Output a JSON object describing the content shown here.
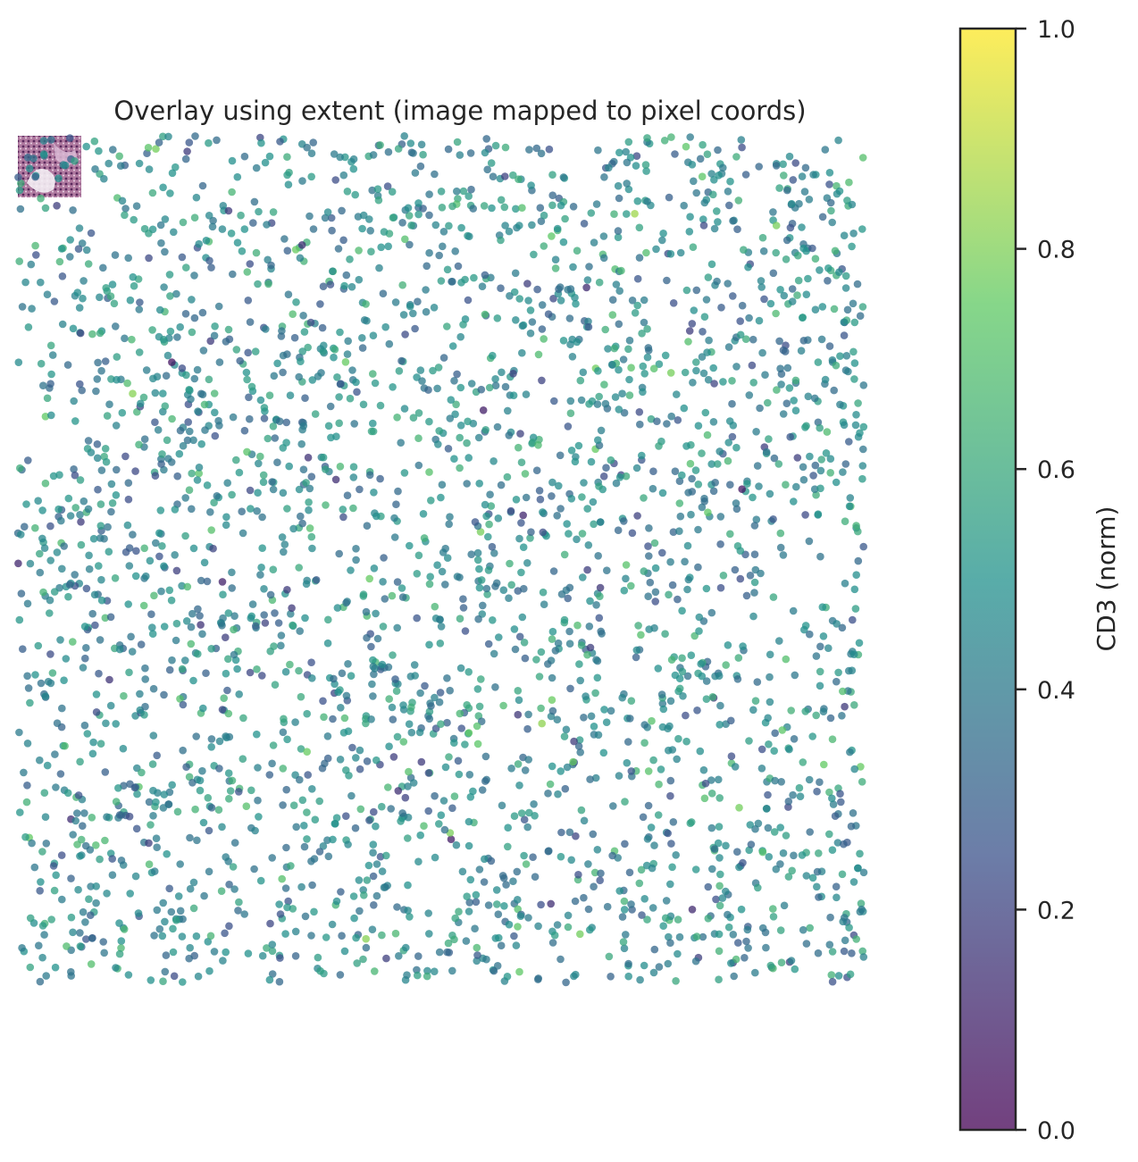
{
  "chart_data": {
    "type": "scatter",
    "title": "Overlay using extent (image mapped to pixel coords)",
    "xlabel": "",
    "ylabel": "",
    "axes_visible": false,
    "grid": false,
    "xlim": [
      0,
      1000
    ],
    "ylim": [
      1000,
      0
    ],
    "point_count": 3000,
    "color_field": "CD3 (norm)",
    "colormap": "viridis",
    "point_alpha": 0.75,
    "colorbar": {
      "label": "CD3 (norm)",
      "range": [
        0,
        1
      ],
      "ticks": [
        0.0,
        0.2,
        0.4,
        0.6,
        0.8,
        1.0
      ],
      "tick_labels": [
        "0.0",
        "0.2",
        "0.4",
        "0.6",
        "0.8",
        "1.0"
      ],
      "placement": "right"
    },
    "image_overlay": {
      "description": "H&E tissue thumbnail",
      "corner": "top-left",
      "extent": [
        0,
        75,
        0,
        70
      ]
    }
  },
  "colors": {
    "viridis_stops": [
      "#440154",
      "#3b528b",
      "#21918c",
      "#5ec962",
      "#fde725"
    ],
    "text": "#262626",
    "colorbar_frame": "#262626"
  }
}
